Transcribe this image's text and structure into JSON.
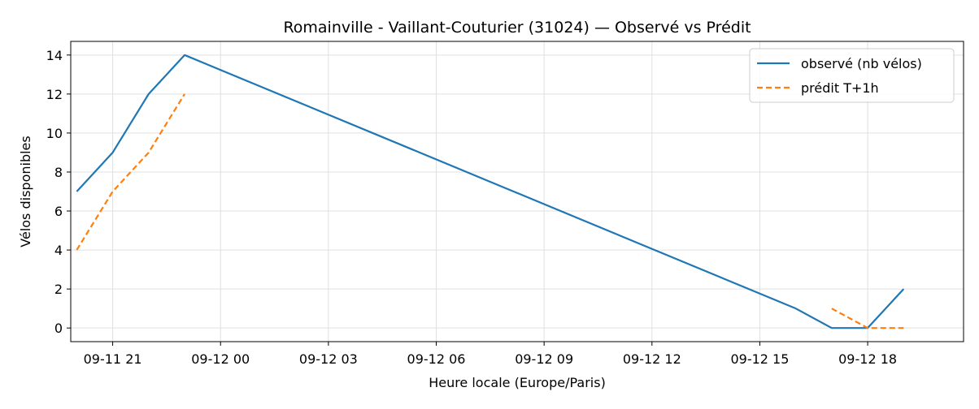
{
  "chart_data": {
    "type": "line",
    "title": "Romainville - Vaillant-Couturier (31024) — Observé vs Prédit",
    "xlabel": "Heure locale (Europe/Paris)",
    "ylabel": "Vélos disponibles",
    "x_axis": {
      "type": "datetime",
      "range": [
        "2025-09-11 19:50",
        "2025-09-12 20:40"
      ],
      "ticks": [
        {
          "t": "2025-09-11 21:00",
          "label": "09-11 21"
        },
        {
          "t": "2025-09-12 00:00",
          "label": "09-12 00"
        },
        {
          "t": "2025-09-12 03:00",
          "label": "09-12 03"
        },
        {
          "t": "2025-09-12 06:00",
          "label": "09-12 06"
        },
        {
          "t": "2025-09-12 09:00",
          "label": "09-12 09"
        },
        {
          "t": "2025-09-12 12:00",
          "label": "09-12 12"
        },
        {
          "t": "2025-09-12 15:00",
          "label": "09-12 15"
        },
        {
          "t": "2025-09-12 18:00",
          "label": "09-12 18"
        }
      ]
    },
    "y_axis": {
      "range": [
        -0.7,
        14.7
      ],
      "ticks": [
        0,
        2,
        4,
        6,
        8,
        10,
        12,
        14
      ]
    },
    "grid": true,
    "legend_position": "top-right",
    "series": [
      {
        "name": "observé (nb vélos)",
        "color": "#1f77b4",
        "style": "solid",
        "points": [
          {
            "t": "2025-09-11 20:00",
            "y": 7
          },
          {
            "t": "2025-09-11 21:00",
            "y": 9
          },
          {
            "t": "2025-09-11 22:00",
            "y": 12
          },
          {
            "t": "2025-09-11 23:00",
            "y": 14
          },
          {
            "t": "2025-09-12 16:00",
            "y": 1
          },
          {
            "t": "2025-09-12 17:00",
            "y": 0
          },
          {
            "t": "2025-09-12 18:00",
            "y": 0
          },
          {
            "t": "2025-09-12 19:00",
            "y": 2
          }
        ]
      },
      {
        "name": "prédit T+1h",
        "color": "#ff7f0e",
        "style": "dashed",
        "segments": [
          [
            {
              "t": "2025-09-11 20:00",
              "y": 4
            },
            {
              "t": "2025-09-11 21:00",
              "y": 7
            },
            {
              "t": "2025-09-11 22:00",
              "y": 9
            },
            {
              "t": "2025-09-11 23:00",
              "y": 12
            }
          ],
          [
            {
              "t": "2025-09-12 17:00",
              "y": 1
            },
            {
              "t": "2025-09-12 18:00",
              "y": 0
            },
            {
              "t": "2025-09-12 19:00",
              "y": 0
            }
          ]
        ]
      }
    ]
  }
}
